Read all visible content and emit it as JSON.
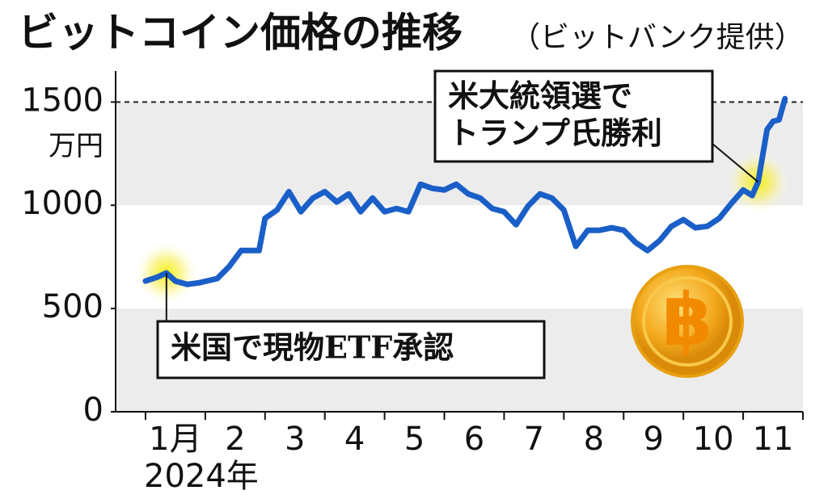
{
  "chart_data": {
    "type": "line",
    "title": "ビットコイン価格の推移",
    "subtitle": "（ビットバンク提供）",
    "y_unit": "万円",
    "x_year": "2024年",
    "categories": [
      "1月",
      "2",
      "3",
      "4",
      "5",
      "6",
      "7",
      "8",
      "9",
      "10",
      "11"
    ],
    "xlim": [
      -0.5,
      11
    ],
    "xticks": [
      0,
      1,
      2,
      3,
      4,
      5,
      6,
      7,
      8,
      9,
      10,
      11
    ],
    "ylim": [
      0,
      1650
    ],
    "yticks": [
      0,
      500,
      1000,
      1500
    ],
    "series": [
      {
        "color": "#1a5fc8",
        "x": [
          0,
          0.2,
          0.35,
          0.5,
          0.7,
          0.9,
          1.2,
          1.4,
          1.6,
          1.9,
          2.0,
          2.2,
          2.4,
          2.6,
          2.8,
          3.0,
          3.2,
          3.4,
          3.6,
          3.8,
          4.0,
          4.2,
          4.4,
          4.6,
          4.8,
          5.0,
          5.2,
          5.4,
          5.6,
          5.8,
          6.0,
          6.2,
          6.4,
          6.6,
          6.8,
          7.0,
          7.2,
          7.4,
          7.6,
          7.8,
          8.0,
          8.2,
          8.4,
          8.6,
          8.8,
          9.0,
          9.2,
          9.4,
          9.6,
          9.8,
          10.0,
          10.15,
          10.25,
          10.4,
          10.5,
          10.6,
          10.7
        ],
        "values": [
          633,
          652,
          672,
          633,
          617,
          625,
          645,
          703,
          781,
          781,
          937,
          977,
          1066,
          969,
          1035,
          1066,
          1016,
          1055,
          969,
          1035,
          969,
          984,
          969,
          1102,
          1082,
          1074,
          1102,
          1055,
          1035,
          984,
          969,
          906,
          996,
          1055,
          1035,
          977,
          801,
          879,
          879,
          891,
          879,
          820,
          781,
          828,
          898,
          930,
          891,
          898,
          937,
          1008,
          1074,
          1047,
          1113,
          1367,
          1406,
          1414,
          1516
        ]
      }
    ],
    "annotations": [
      {
        "text": "米国で現物ETF承認",
        "point": 2
      },
      {
        "text": "米大統領選で\nトランプ氏勝利",
        "point": 52
      }
    ]
  }
}
